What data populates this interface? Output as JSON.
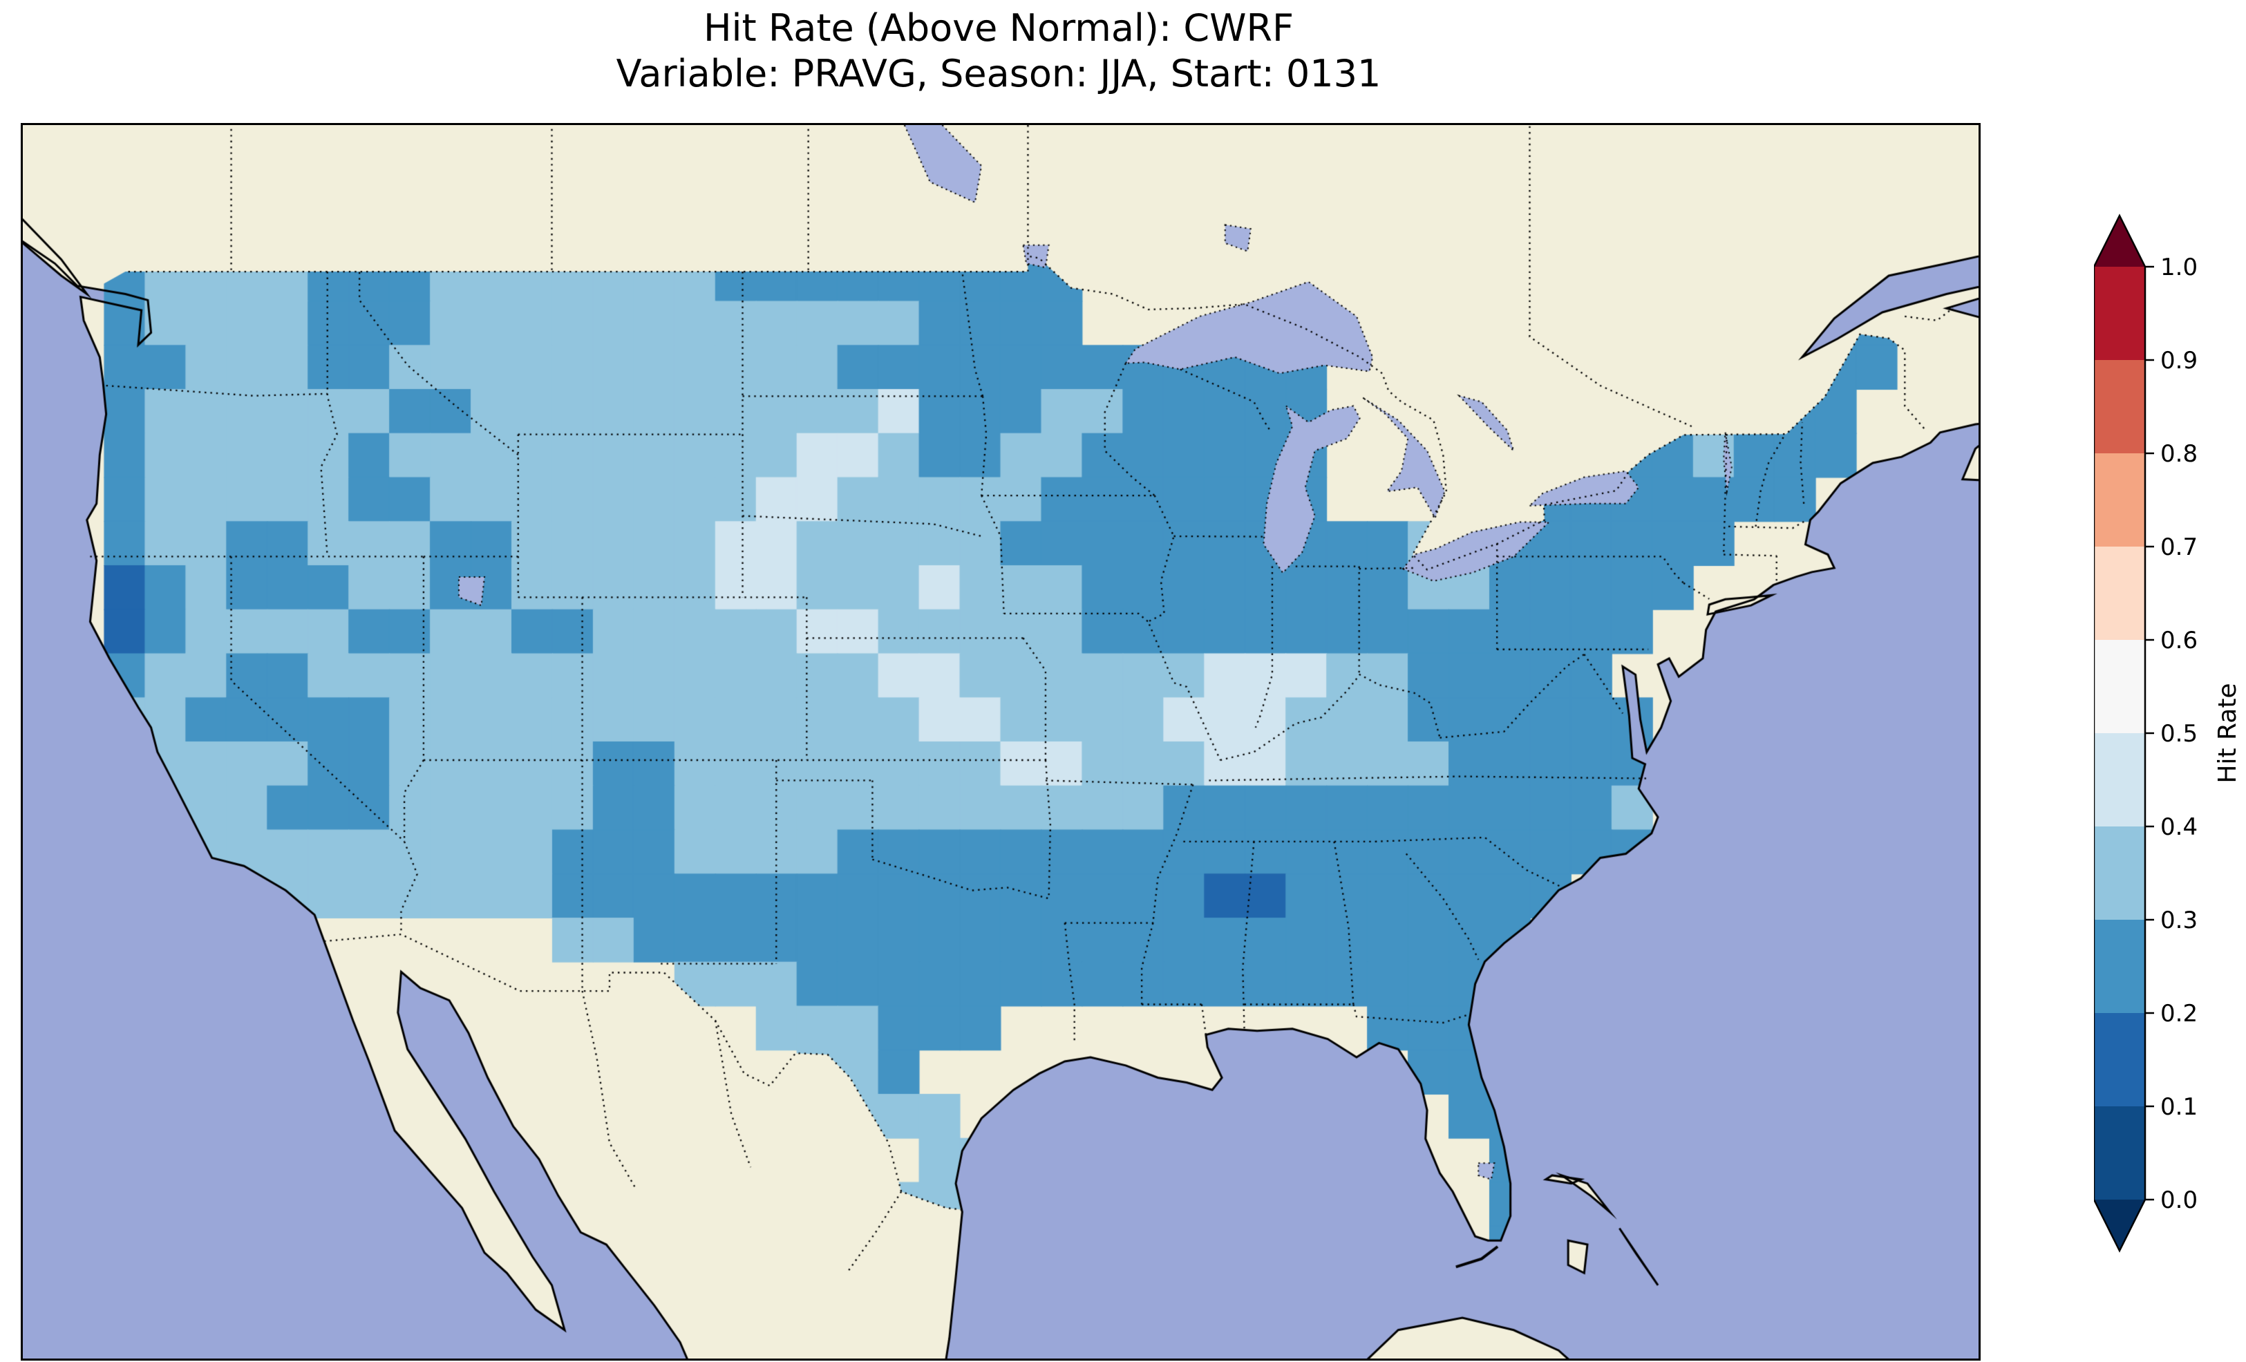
{
  "title": {
    "line1": "Hit Rate (Above Normal): CWRF",
    "line2": "Variable: PRAVG, Season: JJA, Start: 0131"
  },
  "colorbar": {
    "label": "Hit Rate",
    "tick_labels_top_to_bottom": [
      "1.0",
      "0.9",
      "0.8",
      "0.7",
      "0.6",
      "0.5",
      "0.4",
      "0.3",
      "0.2",
      "0.1",
      "0.0"
    ],
    "segment_colors_top_to_bottom": [
      "#b2182b",
      "#d6604d",
      "#f4a582",
      "#fddbc7",
      "#f7f7f7",
      "#d1e5f0",
      "#92c5de",
      "#4393c3",
      "#2166ac",
      "#0f4c87"
    ],
    "extend_above_color": "#67001f",
    "extend_below_color": "#053061",
    "outline_color": "#000000"
  },
  "chart_data": {
    "type": "heatmap",
    "title": "Hit Rate (Above Normal): CWRF",
    "subtitle": "Variable: PRAVG, Season: JJA, Start: 0131",
    "metric": "Hit Rate (Above Normal)",
    "model": "CWRF",
    "variable": "PRAVG",
    "season": "JJA",
    "start": "0131",
    "region": "Contiguous United States",
    "legend_title": "Hit Rate",
    "legend_position": "right",
    "value_range": [
      0.0,
      1.0
    ],
    "colormap": "discrete red-blue, 0.1 bins, arrows at both ends",
    "bins": [
      {
        "code": "1",
        "range": [
          0.1,
          0.2
        ],
        "color": "#2166ac"
      },
      {
        "code": "2",
        "range": [
          0.2,
          0.3
        ],
        "color": "#4393c3"
      },
      {
        "code": "3",
        "range": [
          0.3,
          0.4
        ],
        "color": "#92c5de"
      },
      {
        "code": "4",
        "range": [
          0.4,
          0.5
        ],
        "color": "#d1e5f0"
      }
    ],
    "grid_encoding": "rows north to south, 48 cells per row across the map; '.' = no data (outside CONUS); digits are bin codes, values estimated from the rendered pixels",
    "grid_rows": [
      "................................................",
      "................................................",
      "................................................",
      "..233332223333333222222222..................22..",
      "..233332223333333333332222.................222..",
      "..223332233333333333222222222222..........2222..",
      "..233333322333333333342223322222..........222...",
      "..233333233333333334432233222222......2223222...",
      "..233333223333333344333332222222.....2222222....",
      "..2332233322333334433333222222222233222222......",
      "..123222332233333443334333222222223322222.......",
      "..12333322332233333443333322222222222222........",
      "..2332233333333333333443333334443322222.........",
      "..33222223333333333333443333444333222222........",
      "..33333223333322333333334433344333322222........",
      "..33332223333322333333333333222222222223........",
      "...3333333333222333322222222222222222222.........",
      "....3333333332222222222222222112222222..........",
      ".............332222222222222222222222...........",
      "................333222222222222222222...........",
      "..................333222.........2222...........",
      "...................332............2222..........",
      "....................333............222..........",
      "......................33............22..........",
      ".....................33.............22..........",
      "....................................22..........",
      "................................................",
      "................................................"
    ],
    "map_colors": {
      "ocean": "#9aa7d8",
      "land": "#f2efdb",
      "lakes": "#a6b2de",
      "coastline": "#000000",
      "borders": "#000000"
    }
  }
}
